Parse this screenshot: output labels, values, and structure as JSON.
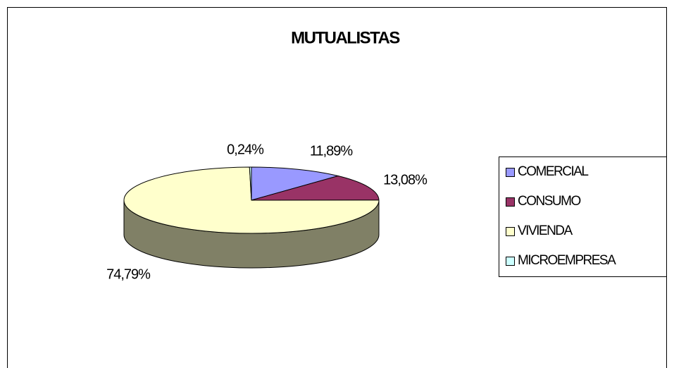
{
  "chart_data": {
    "type": "pie",
    "title": "MUTUALISTAS",
    "categories": [
      "COMERCIAL",
      "CONSUMO",
      "VIVIENDA",
      "MICROEMPRESA"
    ],
    "values": [
      11.89,
      13.08,
      74.79,
      0.24
    ],
    "value_labels": [
      "11,89%",
      "13,08%",
      "74,79%",
      "0,24%"
    ],
    "colors": [
      "#9999ff",
      "#993366",
      "#ffffcc",
      "#ccffff"
    ],
    "legend": "right"
  }
}
